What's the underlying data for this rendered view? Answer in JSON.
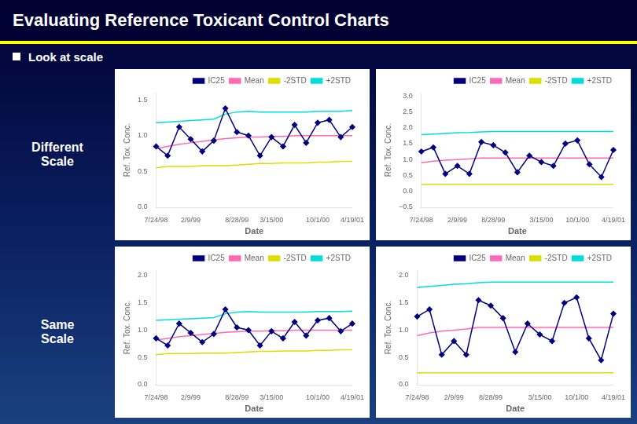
{
  "title": "Evaluating Reference Toxicant Control Charts",
  "subtitle": "Look at scale",
  "chart_data": [
    {
      "type": "line",
      "annotations": [
        "Different\nScale"
      ],
      "xlabel": "Date",
      "ylabel": "Ref. Tox. Conc.",
      "categories": [
        "7/24/98",
        null,
        null,
        "2/9/99",
        null,
        null,
        null,
        "8/28/99",
        null,
        null,
        "3/15/00",
        null,
        null,
        null,
        "10/1/00",
        null,
        null,
        "4/19/01"
      ],
      "series": [
        {
          "name": "IC25",
          "color": "#000080",
          "marker": "diamond",
          "values": [
            0.85,
            0.72,
            1.12,
            0.95,
            0.78,
            0.93,
            1.38,
            1.05,
            1.0,
            0.72,
            0.98,
            0.85,
            1.15,
            0.9,
            1.18,
            1.22,
            0.98,
            1.12
          ]
        },
        {
          "name": "Mean",
          "color": "#ff69b4",
          "values": [
            0.82,
            0.85,
            0.88,
            0.9,
            0.92,
            0.94,
            0.96,
            0.97,
            0.98,
            0.98,
            0.99,
            0.99,
            1.0,
            1.0,
            1.0,
            1.0,
            1.0,
            1.0
          ]
        },
        {
          "name": "-2STD",
          "color": "#dddd00",
          "values": [
            0.55,
            0.57,
            0.57,
            0.57,
            0.58,
            0.58,
            0.58,
            0.59,
            0.6,
            0.61,
            0.61,
            0.62,
            0.62,
            0.62,
            0.63,
            0.63,
            0.64,
            0.64
          ]
        },
        {
          "name": "+2STD",
          "color": "#00dddd",
          "values": [
            1.18,
            1.19,
            1.2,
            1.21,
            1.22,
            1.23,
            1.3,
            1.33,
            1.34,
            1.33,
            1.33,
            1.33,
            1.33,
            1.33,
            1.34,
            1.34,
            1.34,
            1.35
          ]
        }
      ],
      "ylim": [
        0,
        1.6
      ],
      "yticks": [
        {
          "value": 0,
          "label": "0.0"
        },
        0.5,
        {
          "value": 1,
          "label": "1.0"
        },
        1.5
      ],
      "grid": false,
      "legend": "upper right"
    },
    {
      "type": "line",
      "xlabel": "Date",
      "ylabel": "Ref. Tox. Conc.",
      "categories": [
        "7/24/98",
        null,
        null,
        "2/9/99",
        null,
        null,
        "8/28/99",
        null,
        null,
        null,
        "3/15/00",
        null,
        null,
        "10/1/00",
        null,
        null,
        "4/19/01"
      ],
      "series": [
        {
          "name": "IC25",
          "color": "#000080",
          "marker": "diamond",
          "values": [
            1.25,
            1.38,
            0.55,
            0.8,
            0.55,
            1.55,
            1.45,
            1.22,
            0.6,
            1.12,
            0.92,
            0.8,
            1.5,
            1.6,
            0.85,
            0.45,
            1.3
          ]
        },
        {
          "name": "Mean",
          "color": "#ff69b4",
          "values": [
            0.9,
            0.95,
            0.98,
            1.0,
            1.02,
            1.05,
            1.05,
            1.05,
            1.05,
            1.05,
            1.05,
            1.05,
            1.05,
            1.05,
            1.05,
            1.05,
            1.05
          ]
        },
        {
          "name": "-2STD",
          "color": "#dddd00",
          "values": [
            0.22,
            0.22,
            0.22,
            0.22,
            0.22,
            0.22,
            0.22,
            0.22,
            0.22,
            0.22,
            0.22,
            0.22,
            0.22,
            0.22,
            0.22,
            0.22,
            0.22
          ]
        },
        {
          "name": "+2STD",
          "color": "#00dddd",
          "values": [
            1.78,
            1.8,
            1.82,
            1.84,
            1.85,
            1.87,
            1.88,
            1.88,
            1.88,
            1.88,
            1.88,
            1.88,
            1.88,
            1.88,
            1.88,
            1.88,
            1.88
          ]
        }
      ],
      "ylim": [
        -0.5,
        3.1
      ],
      "yticks": [
        {
          "value": -0.5,
          "label": "−0.5"
        },
        {
          "value": 0,
          "label": "0.0"
        },
        0.5,
        {
          "value": 1,
          "label": "1.0"
        },
        1.5,
        {
          "value": 2,
          "label": "2.0"
        },
        2.5,
        {
          "value": 3,
          "label": "3.0"
        }
      ],
      "grid": false,
      "legend": "upper right"
    },
    {
      "type": "line",
      "annotations": [
        "Same\nScale"
      ],
      "xlabel": "Date",
      "ylabel": "Ref. Tox. Conc.",
      "categories": [
        "7/24/98",
        null,
        null,
        "2/9/99",
        null,
        null,
        null,
        "8/28/99",
        null,
        null,
        "3/15/00",
        null,
        null,
        null,
        "10/1/00",
        null,
        null,
        "4/19/01"
      ],
      "series": [
        {
          "name": "IC25",
          "color": "#000080",
          "marker": "diamond",
          "values": [
            0.85,
            0.72,
            1.12,
            0.95,
            0.78,
            0.93,
            1.38,
            1.05,
            1.0,
            0.72,
            0.98,
            0.85,
            1.15,
            0.9,
            1.18,
            1.22,
            0.98,
            1.12
          ]
        },
        {
          "name": "Mean",
          "color": "#ff69b4",
          "values": [
            0.82,
            0.85,
            0.88,
            0.9,
            0.92,
            0.94,
            0.96,
            0.97,
            0.98,
            0.98,
            0.99,
            0.99,
            1.0,
            1.0,
            1.0,
            1.0,
            1.0,
            1.0
          ]
        },
        {
          "name": "-2STD",
          "color": "#dddd00",
          "values": [
            0.55,
            0.57,
            0.57,
            0.57,
            0.58,
            0.58,
            0.58,
            0.59,
            0.6,
            0.61,
            0.61,
            0.62,
            0.62,
            0.62,
            0.63,
            0.63,
            0.64,
            0.64
          ]
        },
        {
          "name": "+2STD",
          "color": "#00dddd",
          "values": [
            1.18,
            1.19,
            1.2,
            1.21,
            1.22,
            1.23,
            1.3,
            1.33,
            1.34,
            1.33,
            1.33,
            1.33,
            1.33,
            1.33,
            1.34,
            1.34,
            1.34,
            1.35
          ]
        }
      ],
      "ylim": [
        0,
        2.1
      ],
      "yticks": [
        {
          "value": 0,
          "label": "0.0"
        },
        0.5,
        {
          "value": 1,
          "label": "1.0"
        },
        1.5,
        {
          "value": 2,
          "label": "2.0"
        }
      ],
      "grid": false,
      "legend": "upper right"
    },
    {
      "type": "line",
      "xlabel": "Date",
      "ylabel": "Ref. Tox. Conc.",
      "categories": [
        "7/24/98",
        null,
        null,
        "2/9/99",
        null,
        null,
        "8/28/99",
        null,
        null,
        null,
        "3/15/00",
        null,
        null,
        "10/1/00",
        null,
        null,
        "4/19/01"
      ],
      "series": [
        {
          "name": "IC25",
          "color": "#000080",
          "marker": "diamond",
          "values": [
            1.25,
            1.38,
            0.55,
            0.8,
            0.55,
            1.55,
            1.45,
            1.22,
            0.6,
            1.12,
            0.92,
            0.8,
            1.5,
            1.6,
            0.85,
            0.45,
            1.3
          ]
        },
        {
          "name": "Mean",
          "color": "#ff69b4",
          "values": [
            0.9,
            0.95,
            0.98,
            1.0,
            1.02,
            1.05,
            1.05,
            1.05,
            1.05,
            1.05,
            1.05,
            1.05,
            1.05,
            1.05,
            1.05,
            1.05,
            1.05
          ]
        },
        {
          "name": "-2STD",
          "color": "#dddd00",
          "values": [
            0.22,
            0.22,
            0.22,
            0.22,
            0.22,
            0.22,
            0.22,
            0.22,
            0.22,
            0.22,
            0.22,
            0.22,
            0.22,
            0.22,
            0.22,
            0.22,
            0.22
          ]
        },
        {
          "name": "+2STD",
          "color": "#00dddd",
          "values": [
            1.78,
            1.8,
            1.82,
            1.84,
            1.85,
            1.87,
            1.88,
            1.88,
            1.88,
            1.88,
            1.88,
            1.88,
            1.88,
            1.88,
            1.88,
            1.88,
            1.88
          ]
        }
      ],
      "ylim": [
        0,
        2.1
      ],
      "yticks": [
        {
          "value": 0,
          "label": "0.0"
        },
        0.5,
        {
          "value": 1,
          "label": "1.0"
        },
        1.5,
        {
          "value": 2,
          "label": "2.0"
        }
      ],
      "grid": false,
      "legend": "upper right"
    }
  ]
}
